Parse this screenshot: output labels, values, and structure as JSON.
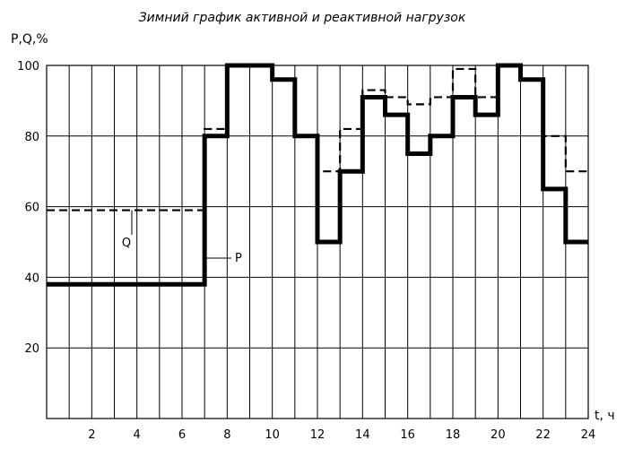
{
  "chart_data": {
    "type": "line",
    "title": "Зимний график активной и реактивной нагрузок",
    "ylabel": "P,Q,%",
    "xlabel": "t, ч",
    "xlim": [
      0,
      24
    ],
    "ylim": [
      0,
      100
    ],
    "x_ticks": [
      "2",
      "4",
      "6",
      "8",
      "10",
      "12",
      "14",
      "16",
      "18",
      "20",
      "22",
      "24"
    ],
    "y_ticks": [
      "20",
      "40",
      "60",
      "80",
      "100"
    ],
    "grid": true,
    "step": true,
    "series": [
      {
        "name": "P",
        "style": "solid-thick",
        "color": "#000000",
        "values": [
          38,
          38,
          38,
          38,
          38,
          38,
          38,
          80,
          100,
          100,
          96,
          80,
          50,
          70,
          91,
          86,
          75,
          80,
          91,
          86,
          100,
          96,
          65,
          50
        ]
      },
      {
        "name": "Q",
        "style": "dashed",
        "color": "#000000",
        "values": [
          59,
          59,
          59,
          59,
          59,
          59,
          59,
          82,
          100,
          100,
          96,
          80,
          70,
          82,
          93,
          91,
          89,
          91,
          99,
          91,
          100,
          96,
          80,
          70
        ]
      }
    ]
  }
}
